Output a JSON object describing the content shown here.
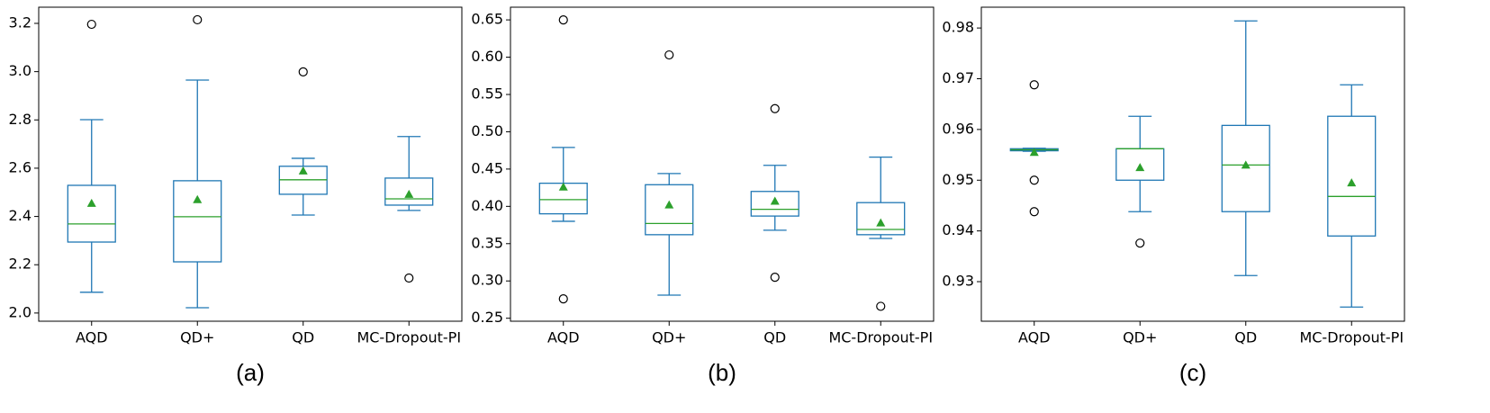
{
  "chart_data": [
    {
      "type": "box",
      "caption": "(a)",
      "categories": [
        "AQD",
        "QD+",
        "QD",
        "MC-Dropout-PI"
      ],
      "box_color": "#1f77b4",
      "median_color": "#2ca02c",
      "mean_color": "#2ca02c",
      "boxes": [
        {
          "low": 2.086,
          "q1": 2.294,
          "median": 2.369,
          "q3": 2.529,
          "high": 2.801,
          "mean": 2.455,
          "outliers": [
            3.196
          ]
        },
        {
          "low": 2.022,
          "q1": 2.212,
          "median": 2.399,
          "q3": 2.548,
          "high": 2.965,
          "mean": 2.47,
          "outliers": [
            3.215
          ]
        },
        {
          "low": 2.406,
          "q1": 2.492,
          "median": 2.552,
          "q3": 2.608,
          "high": 2.641,
          "mean": 2.589,
          "outliers": [
            2.999
          ]
        },
        {
          "low": 2.425,
          "q1": 2.447,
          "median": 2.473,
          "q3": 2.559,
          "high": 2.731,
          "mean": 2.492,
          "outliers": [
            2.145
          ]
        }
      ],
      "ylim": [
        1.966,
        3.267
      ],
      "yticks": [
        {
          "value": 2,
          "label": "2.0"
        },
        2.2,
        2.4,
        2.6,
        2.8,
        {
          "value": 3,
          "label": "3.0"
        },
        3.2
      ]
    },
    {
      "type": "box",
      "caption": "(b)",
      "categories": [
        "AQD",
        "QD+",
        "QD",
        "MC-Dropout-PI"
      ],
      "box_color": "#1f77b4",
      "median_color": "#2ca02c",
      "mean_color": "#2ca02c",
      "boxes": [
        {
          "low": 0.38,
          "q1": 0.39,
          "median": 0.409,
          "q3": 0.431,
          "high": 0.479,
          "mean": 0.426,
          "outliers": [
            0.276,
            0.65
          ]
        },
        {
          "low": 0.281,
          "q1": 0.362,
          "median": 0.377,
          "q3": 0.429,
          "high": 0.444,
          "mean": 0.402,
          "outliers": [
            0.603
          ]
        },
        {
          "low": 0.368,
          "q1": 0.387,
          "median": 0.396,
          "q3": 0.42,
          "high": 0.455,
          "mean": 0.407,
          "outliers": [
            0.305,
            0.531
          ]
        },
        {
          "low": 0.357,
          "q1": 0.362,
          "median": 0.369,
          "q3": 0.405,
          "high": 0.466,
          "mean": 0.378,
          "outliers": [
            0.266
          ]
        }
      ],
      "ylim": [
        0.246,
        0.667
      ],
      "yticks": [
        0.25,
        {
          "value": 0.3,
          "label": "0.30"
        },
        0.35,
        {
          "value": 0.4,
          "label": "0.40"
        },
        0.45,
        {
          "value": 0.5,
          "label": "0.50"
        },
        0.55,
        {
          "value": 0.6,
          "label": "0.60"
        },
        0.65
      ]
    },
    {
      "type": "box",
      "caption": "(c)",
      "categories": [
        "AQD",
        "QD+",
        "QD",
        "MC-Dropout-PI"
      ],
      "box_color": "#1f77b4",
      "median_color": "#2ca02c",
      "mean_color": "#2ca02c",
      "boxes": [
        {
          "low": 0.9557,
          "q1": 0.9558,
          "median": 0.956,
          "q3": 0.9562,
          "high": 0.9563,
          "mean": 0.9555,
          "outliers": [
            0.9688,
            0.95,
            0.9438
          ]
        },
        {
          "low": 0.9438,
          "q1": 0.95,
          "median": 0.9562,
          "q3": 0.9562,
          "high": 0.9626,
          "mean": 0.9525,
          "outliers": [
            0.9376
          ]
        },
        {
          "low": 0.9312,
          "q1": 0.9438,
          "median": 0.953,
          "q3": 0.9608,
          "high": 0.9814,
          "mean": 0.953,
          "outliers": []
        },
        {
          "low": 0.925,
          "q1": 0.939,
          "median": 0.9468,
          "q3": 0.9626,
          "high": 0.9688,
          "mean": 0.9495,
          "outliers": []
        }
      ],
      "ylim": [
        0.9222,
        0.9841
      ],
      "yticks": [
        0.93,
        0.94,
        0.95,
        0.96,
        0.97,
        0.98
      ]
    }
  ]
}
